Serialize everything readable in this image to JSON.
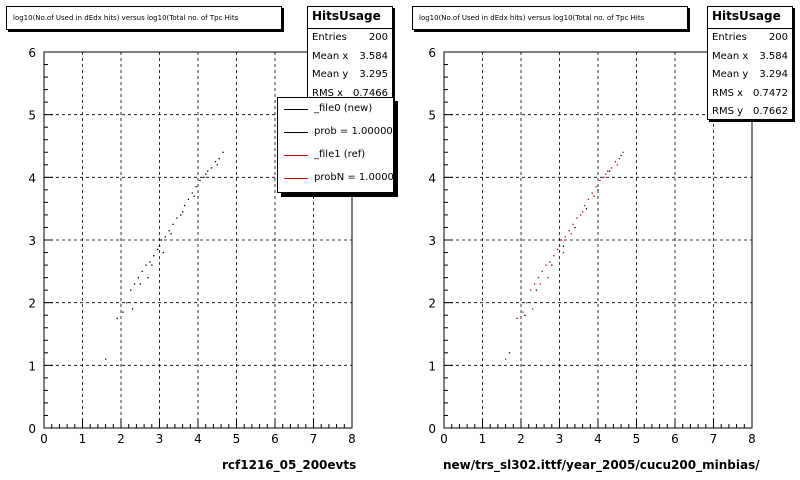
{
  "colors": {
    "new": "#000000",
    "ref": "#cc0000"
  },
  "panels": [
    {
      "title": "log10(No.of Used in dEdx hits) versus log10(Total no. of Tpc Hits",
      "stats": {
        "name": "HitsUsage",
        "rows": [
          {
            "label": "Entries",
            "value": "200"
          },
          {
            "label": "Mean x",
            "value": "3.584"
          },
          {
            "label": "Mean y",
            "value": "3.295"
          },
          {
            "label": "RMS x",
            "value": "0.7466"
          }
        ]
      },
      "legend": [
        {
          "label": "_file0 (new)",
          "color": "#000000"
        },
        {
          "label": "prob = 1.000000",
          "color": "#000000"
        },
        {
          "label": "_file1 (ref)",
          "color": "#cc0000"
        },
        {
          "label": "probN = 1.000000",
          "color": "#cc0000"
        }
      ],
      "xcaption": "rcf1216_05_200evts"
    },
    {
      "title": "log10(No.of Used in dEdx hits) versus log10(Total no. of Tpc Hits",
      "stats": {
        "name": "HitsUsage",
        "rows": [
          {
            "label": "Entries",
            "value": "200"
          },
          {
            "label": "Mean x",
            "value": "3.584"
          },
          {
            "label": "Mean y",
            "value": "3.294"
          },
          {
            "label": "RMS x",
            "value": "0.7472"
          },
          {
            "label": "RMS y",
            "value": "0.7662"
          }
        ]
      },
      "xcaption": "new/trs_sl302.ittf/year_2005/cucu200_minbias/"
    }
  ],
  "chart_data": [
    {
      "type": "scatter",
      "title": "log10(No.of Used in dEdx hits) versus log10(Total no. of Tpc Hits",
      "xlabel": "rcf1216_05_200evts",
      "ylabel": "",
      "xlim": [
        0,
        8
      ],
      "ylim": [
        0,
        6
      ],
      "xticks": [
        "0",
        "1",
        "2",
        "3",
        "4",
        "5",
        "6",
        "7",
        "8"
      ],
      "yticks": [
        "0",
        "1",
        "2",
        "3",
        "4",
        "5",
        "6"
      ],
      "grid": true,
      "series": [
        {
          "name": "_file0 (new)",
          "points": [
            [
              1.6,
              1.1
            ],
            [
              1.9,
              1.75
            ],
            [
              2.05,
              1.85
            ],
            [
              2.15,
              2.0
            ],
            [
              2.25,
              2.2
            ],
            [
              2.35,
              2.3
            ],
            [
              2.45,
              2.4
            ],
            [
              2.55,
              2.5
            ],
            [
              2.65,
              2.6
            ],
            [
              2.75,
              2.65
            ],
            [
              2.85,
              2.75
            ],
            [
              2.95,
              2.85
            ],
            [
              3.0,
              2.9
            ],
            [
              3.05,
              3.0
            ],
            [
              3.15,
              3.05
            ],
            [
              3.25,
              3.15
            ],
            [
              3.35,
              3.25
            ],
            [
              3.45,
              3.35
            ],
            [
              3.55,
              3.4
            ],
            [
              3.65,
              3.55
            ],
            [
              3.75,
              3.65
            ],
            [
              3.85,
              3.75
            ],
            [
              3.95,
              3.85
            ],
            [
              4.05,
              3.95
            ],
            [
              4.15,
              4.0
            ],
            [
              4.25,
              4.1
            ],
            [
              4.35,
              4.15
            ],
            [
              4.45,
              4.25
            ],
            [
              4.55,
              4.3
            ],
            [
              4.65,
              4.4
            ],
            [
              2.5,
              2.3
            ],
            [
              2.8,
              2.6
            ],
            [
              3.1,
              2.8
            ],
            [
              3.3,
              3.1
            ],
            [
              3.6,
              3.45
            ],
            [
              3.9,
              3.7
            ],
            [
              4.2,
              4.05
            ],
            [
              4.5,
              4.2
            ],
            [
              2.3,
              1.9
            ],
            [
              2.7,
              2.4
            ]
          ]
        }
      ]
    },
    {
      "type": "scatter",
      "title": "log10(No.of Used in dEdx hits) versus log10(Total no. of Tpc Hits",
      "xlabel": "new/trs_sl302.ittf/year_2005/cucu200_minbias/",
      "ylabel": "",
      "xlim": [
        0,
        8
      ],
      "ylim": [
        0,
        6
      ],
      "xticks": [
        "0",
        "1",
        "2",
        "3",
        "4",
        "5",
        "6",
        "7",
        "8"
      ],
      "yticks": [
        "0",
        "1",
        "2",
        "3",
        "4",
        "5",
        "6"
      ],
      "grid": true,
      "series": [
        {
          "name": "_file0 (new)",
          "color": "#000000",
          "points": [
            [
              1.7,
              1.2
            ],
            [
              2.1,
              1.8
            ],
            [
              2.4,
              2.2
            ],
            [
              2.8,
              2.6
            ],
            [
              3.1,
              2.9
            ],
            [
              3.4,
              3.2
            ],
            [
              3.7,
              3.5
            ],
            [
              4.0,
              3.8
            ],
            [
              4.3,
              4.1
            ],
            [
              4.6,
              4.35
            ]
          ]
        },
        {
          "name": "_file1 (ref)",
          "color": "#cc0000",
          "points": [
            [
              1.6,
              1.1
            ],
            [
              1.9,
              1.75
            ],
            [
              2.05,
              1.85
            ],
            [
              2.15,
              2.0
            ],
            [
              2.25,
              2.2
            ],
            [
              2.35,
              2.3
            ],
            [
              2.45,
              2.4
            ],
            [
              2.55,
              2.5
            ],
            [
              2.65,
              2.6
            ],
            [
              2.75,
              2.65
            ],
            [
              2.85,
              2.75
            ],
            [
              2.95,
              2.85
            ],
            [
              3.0,
              2.9
            ],
            [
              3.05,
              3.0
            ],
            [
              3.15,
              3.05
            ],
            [
              3.25,
              3.15
            ],
            [
              3.35,
              3.25
            ],
            [
              3.45,
              3.35
            ],
            [
              3.55,
              3.4
            ],
            [
              3.65,
              3.55
            ],
            [
              3.75,
              3.65
            ],
            [
              3.85,
              3.75
            ],
            [
              3.95,
              3.85
            ],
            [
              4.05,
              3.95
            ],
            [
              4.15,
              4.0
            ],
            [
              4.25,
              4.1
            ],
            [
              4.35,
              4.15
            ],
            [
              4.45,
              4.25
            ],
            [
              4.55,
              4.3
            ],
            [
              4.65,
              4.4
            ],
            [
              2.5,
              2.3
            ],
            [
              2.8,
              2.6
            ],
            [
              3.1,
              2.8
            ],
            [
              3.3,
              3.1
            ],
            [
              3.6,
              3.45
            ],
            [
              3.9,
              3.7
            ],
            [
              4.2,
              4.05
            ],
            [
              4.5,
              4.2
            ],
            [
              2.3,
              1.9
            ],
            [
              2.7,
              2.4
            ]
          ]
        }
      ]
    }
  ]
}
